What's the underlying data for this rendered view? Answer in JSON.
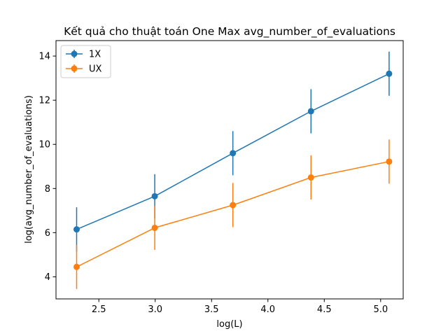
{
  "chart_data": {
    "type": "line",
    "title": "Kết quả cho thuật toán One Max avg_number_of_evaluations",
    "xlabel": "log(L)",
    "ylabel": "log(avg_number_of_evaluations)",
    "xlim": [
      2.12,
      5.2
    ],
    "ylim": [
      3.0,
      14.7
    ],
    "xticks": [
      2.5,
      3.0,
      3.5,
      4.0,
      4.5,
      5.0
    ],
    "xtick_labels": [
      "2.5",
      "3.0",
      "3.5",
      "4.0",
      "4.5",
      "5.0"
    ],
    "yticks": [
      4,
      6,
      8,
      10,
      12,
      14
    ],
    "ytick_labels": [
      "4",
      "6",
      "8",
      "10",
      "12",
      "14"
    ],
    "grid": false,
    "legend_position": "top-left",
    "x": [
      2.303,
      2.996,
      3.689,
      4.382,
      5.075
    ],
    "series": [
      {
        "name": "1X",
        "color": "#1f77b4",
        "values": [
          6.15,
          7.65,
          9.6,
          11.5,
          13.2
        ],
        "error": [
          1.0,
          1.0,
          1.0,
          1.0,
          1.0
        ]
      },
      {
        "name": "UX",
        "color": "#ff7f0e",
        "values": [
          4.45,
          6.22,
          7.25,
          8.5,
          9.22
        ],
        "error": [
          1.0,
          1.0,
          1.0,
          1.0,
          1.0
        ]
      }
    ]
  }
}
